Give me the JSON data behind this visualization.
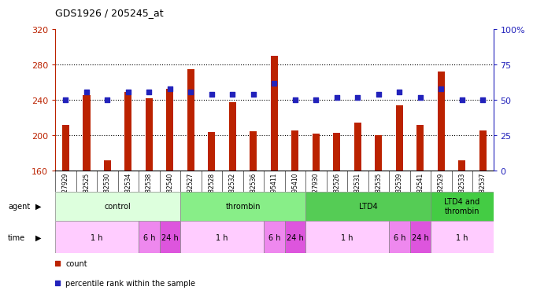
{
  "title": "GDS1926 / 205245_at",
  "samples": [
    "GSM27929",
    "GSM82525",
    "GSM82530",
    "GSM82534",
    "GSM82538",
    "GSM82540",
    "GSM82527",
    "GSM82528",
    "GSM82532",
    "GSM82536",
    "GSM95411",
    "GSM95410",
    "GSM27930",
    "GSM82526",
    "GSM82531",
    "GSM82535",
    "GSM82539",
    "GSM82541",
    "GSM82529",
    "GSM82533",
    "GSM82537"
  ],
  "counts": [
    212,
    246,
    172,
    249,
    242,
    253,
    275,
    204,
    238,
    205,
    290,
    206,
    202,
    203,
    215,
    200,
    234,
    212,
    272,
    172,
    206
  ],
  "percentiles": [
    50,
    56,
    50,
    56,
    56,
    58,
    56,
    54,
    54,
    54,
    62,
    50,
    50,
    52,
    52,
    54,
    56,
    52,
    58,
    50,
    50
  ],
  "ylim_left": [
    160,
    320
  ],
  "ylim_right": [
    0,
    100
  ],
  "yticks_left": [
    160,
    200,
    240,
    280,
    320
  ],
  "yticks_right": [
    0,
    25,
    50,
    75,
    100
  ],
  "ytick_labels_right": [
    "0",
    "25",
    "50",
    "75",
    "100%"
  ],
  "bar_color": "#bb2200",
  "dot_color": "#2222bb",
  "agent_groups": [
    {
      "label": "control",
      "start": 0,
      "end": 6,
      "color": "#ddffdd"
    },
    {
      "label": "thrombin",
      "start": 6,
      "end": 12,
      "color": "#88ee88"
    },
    {
      "label": "LTD4",
      "start": 12,
      "end": 18,
      "color": "#55cc55"
    },
    {
      "label": "LTD4 and\nthrombin",
      "start": 18,
      "end": 21,
      "color": "#44cc44"
    }
  ],
  "time_groups": [
    {
      "label": "1 h",
      "start": 0,
      "end": 4,
      "color": "#ffccff"
    },
    {
      "label": "6 h",
      "start": 4,
      "end": 5,
      "color": "#ee88ee"
    },
    {
      "label": "24 h",
      "start": 5,
      "end": 6,
      "color": "#dd55dd"
    },
    {
      "label": "1 h",
      "start": 6,
      "end": 10,
      "color": "#ffccff"
    },
    {
      "label": "6 h",
      "start": 10,
      "end": 11,
      "color": "#ee88ee"
    },
    {
      "label": "24 h",
      "start": 11,
      "end": 12,
      "color": "#dd55dd"
    },
    {
      "label": "1 h",
      "start": 12,
      "end": 16,
      "color": "#ffccff"
    },
    {
      "label": "6 h",
      "start": 16,
      "end": 17,
      "color": "#ee88ee"
    },
    {
      "label": "24 h",
      "start": 17,
      "end": 18,
      "color": "#dd55dd"
    },
    {
      "label": "1 h",
      "start": 18,
      "end": 21,
      "color": "#ffccff"
    }
  ],
  "bar_width": 0.35,
  "dot_size": 25
}
